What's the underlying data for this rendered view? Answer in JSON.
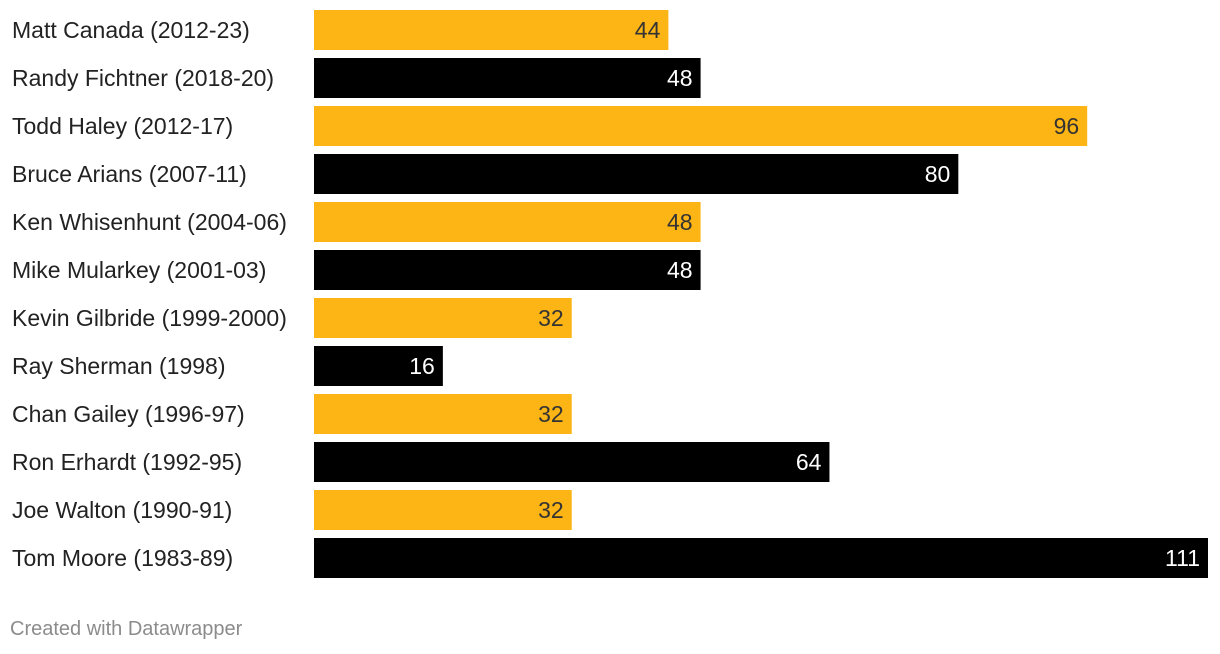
{
  "chart_data": {
    "type": "bar",
    "orientation": "horizontal",
    "categories": [
      "Matt Canada (2012-23)",
      "Randy Fichtner (2018-20)",
      "Todd Haley (2012-17)",
      "Bruce Arians (2007-11)",
      "Ken Whisenhunt (2004-06)",
      "Mike Mularkey (2001-03)",
      "Kevin Gilbride (1999-2000)",
      "Ray Sherman (1998)",
      "Chan Gailey (1996-97)",
      "Ron Erhardt (1992-95)",
      "Joe Walton (1990-91)",
      "Tom Moore (1983-89)"
    ],
    "values": [
      44,
      48,
      96,
      80,
      48,
      48,
      32,
      16,
      32,
      64,
      32,
      111
    ],
    "value_labels": [
      "44",
      "48",
      "96",
      "80",
      "48",
      "48",
      "32",
      "16",
      "32",
      "64",
      "32",
      "111"
    ],
    "xlim": [
      0,
      111
    ],
    "grid": false,
    "legend": "none",
    "colors": {
      "bar_alternate_1": "#FDB515",
      "bar_alternate_2": "#000000",
      "label_on_gold": "#333333",
      "label_on_black": "#ffffff"
    }
  },
  "footer": {
    "credit": "Created with Datawrapper"
  }
}
